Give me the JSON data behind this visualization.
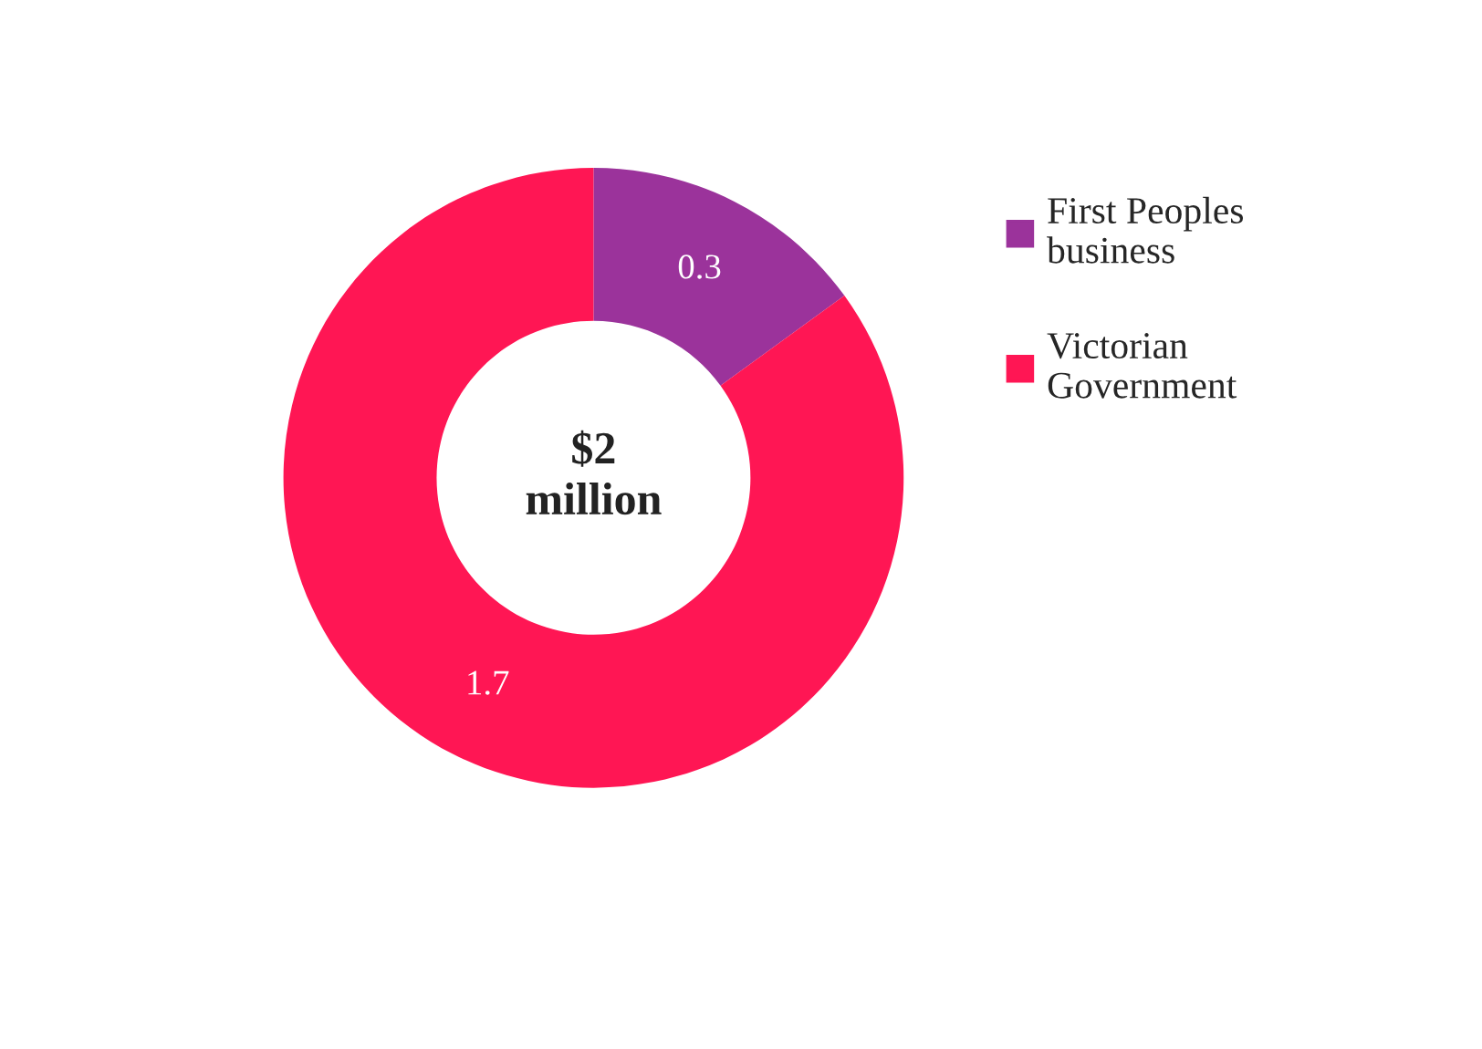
{
  "chart_data": {
    "type": "donut",
    "categories": [
      "First Peoples\nbusiness",
      "Victorian\nGovernment"
    ],
    "values": [
      0.3,
      1.7
    ],
    "colors": [
      "#9b339b",
      "#ff1654"
    ],
    "data_labels": true,
    "annotations": [
      "$2\nmillion"
    ],
    "legend": "right"
  }
}
